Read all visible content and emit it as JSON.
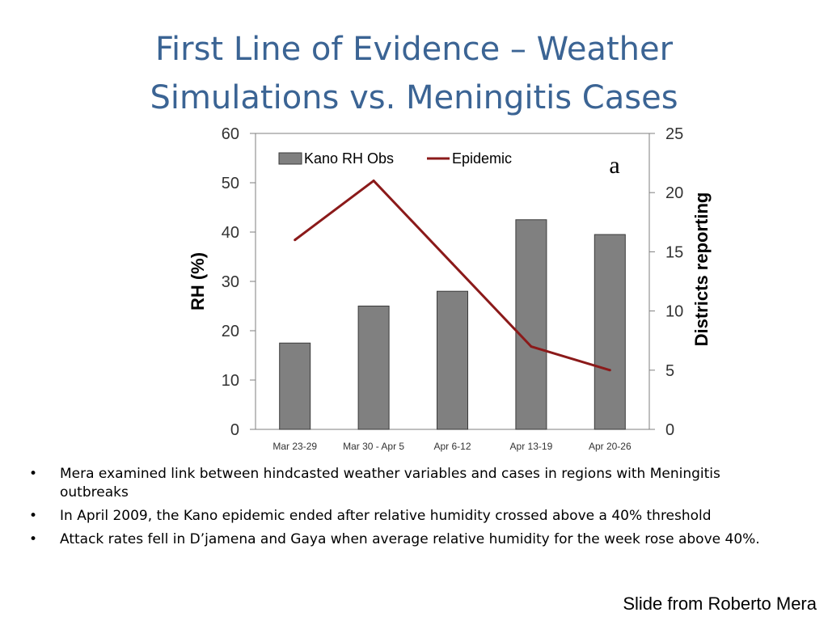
{
  "slide": {
    "title_line1": "First Line of Evidence – Weather",
    "title_line2": "Simulations vs. Meningitis Cases",
    "bullets": [
      "Mera examined link between hindcasted weather variables and cases in regions with Meningitis outbreaks",
      "In April 2009, the Kano epidemic ended after relative humidity crossed above a 40% threshold",
      "Attack rates fell in D’jamena and Gaya when average relative humidity for the week rose above 40%."
    ],
    "bullet_glyph": "•",
    "credit": "Slide from Roberto Mera"
  },
  "chart_data": {
    "type": "bar",
    "categories": [
      "Mar 23-29",
      "Mar 30 - Apr 5",
      "Apr 6-12",
      "Apr 13-19",
      "Apr 20-26"
    ],
    "series": [
      {
        "name": "Kano RH Obs",
        "type": "bar",
        "axis": "left",
        "values": [
          17.5,
          25,
          28,
          42.5,
          39.5
        ],
        "color": "#808080"
      },
      {
        "name": "Epidemic",
        "type": "line",
        "axis": "right",
        "values": [
          16,
          21,
          14,
          7,
          5
        ],
        "color": "#8B1A1A"
      }
    ],
    "annotation": "a",
    "ylabel": "RH (%)",
    "y2label": "Districts reporting",
    "ylim": [
      0,
      60
    ],
    "y2lim": [
      0,
      25
    ],
    "yticks": [
      0,
      10,
      20,
      30,
      40,
      50,
      60
    ],
    "y2ticks": [
      0,
      5,
      10,
      15,
      20,
      25
    ],
    "legend": "top-left"
  }
}
